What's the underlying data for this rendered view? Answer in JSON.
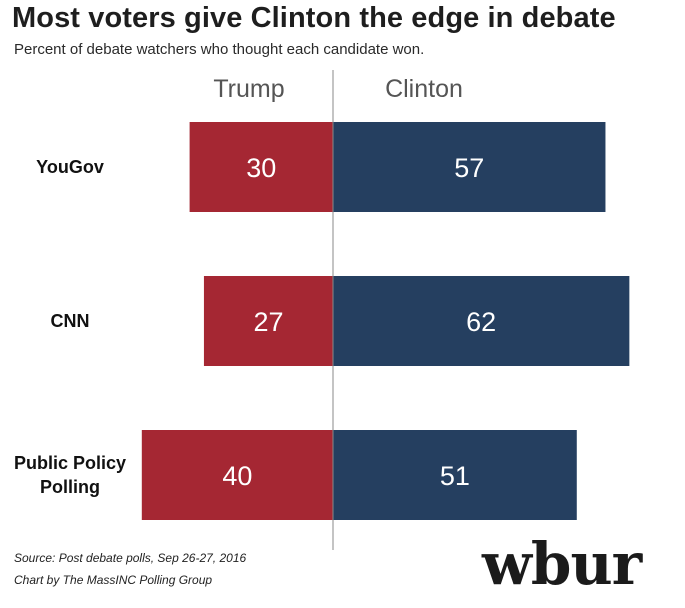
{
  "title": "Most voters give Clinton the edge in debate",
  "subtitle": "Percent of debate watchers who thought each candidate won.",
  "source_line1": "Source: Post debate polls, Sep 26-27, 2016",
  "source_line2": "Chart by The MassINC Polling Group",
  "logo": "wbur",
  "colors": {
    "trump": "#a52733",
    "clinton": "#253f60",
    "divider": "#888888"
  },
  "chart_data": {
    "type": "bar",
    "orientation": "horizontal-diverging",
    "categories": [
      "YouGov",
      "CNN",
      "Public Policy Polling"
    ],
    "category_lines": [
      [
        "YouGov"
      ],
      [
        "CNN"
      ],
      [
        "Public Policy",
        "Polling"
      ]
    ],
    "series": [
      {
        "name": "Trump",
        "values": [
          30,
          27,
          40
        ]
      },
      {
        "name": "Clinton",
        "values": [
          57,
          62,
          51
        ]
      }
    ],
    "unit": "percent"
  }
}
